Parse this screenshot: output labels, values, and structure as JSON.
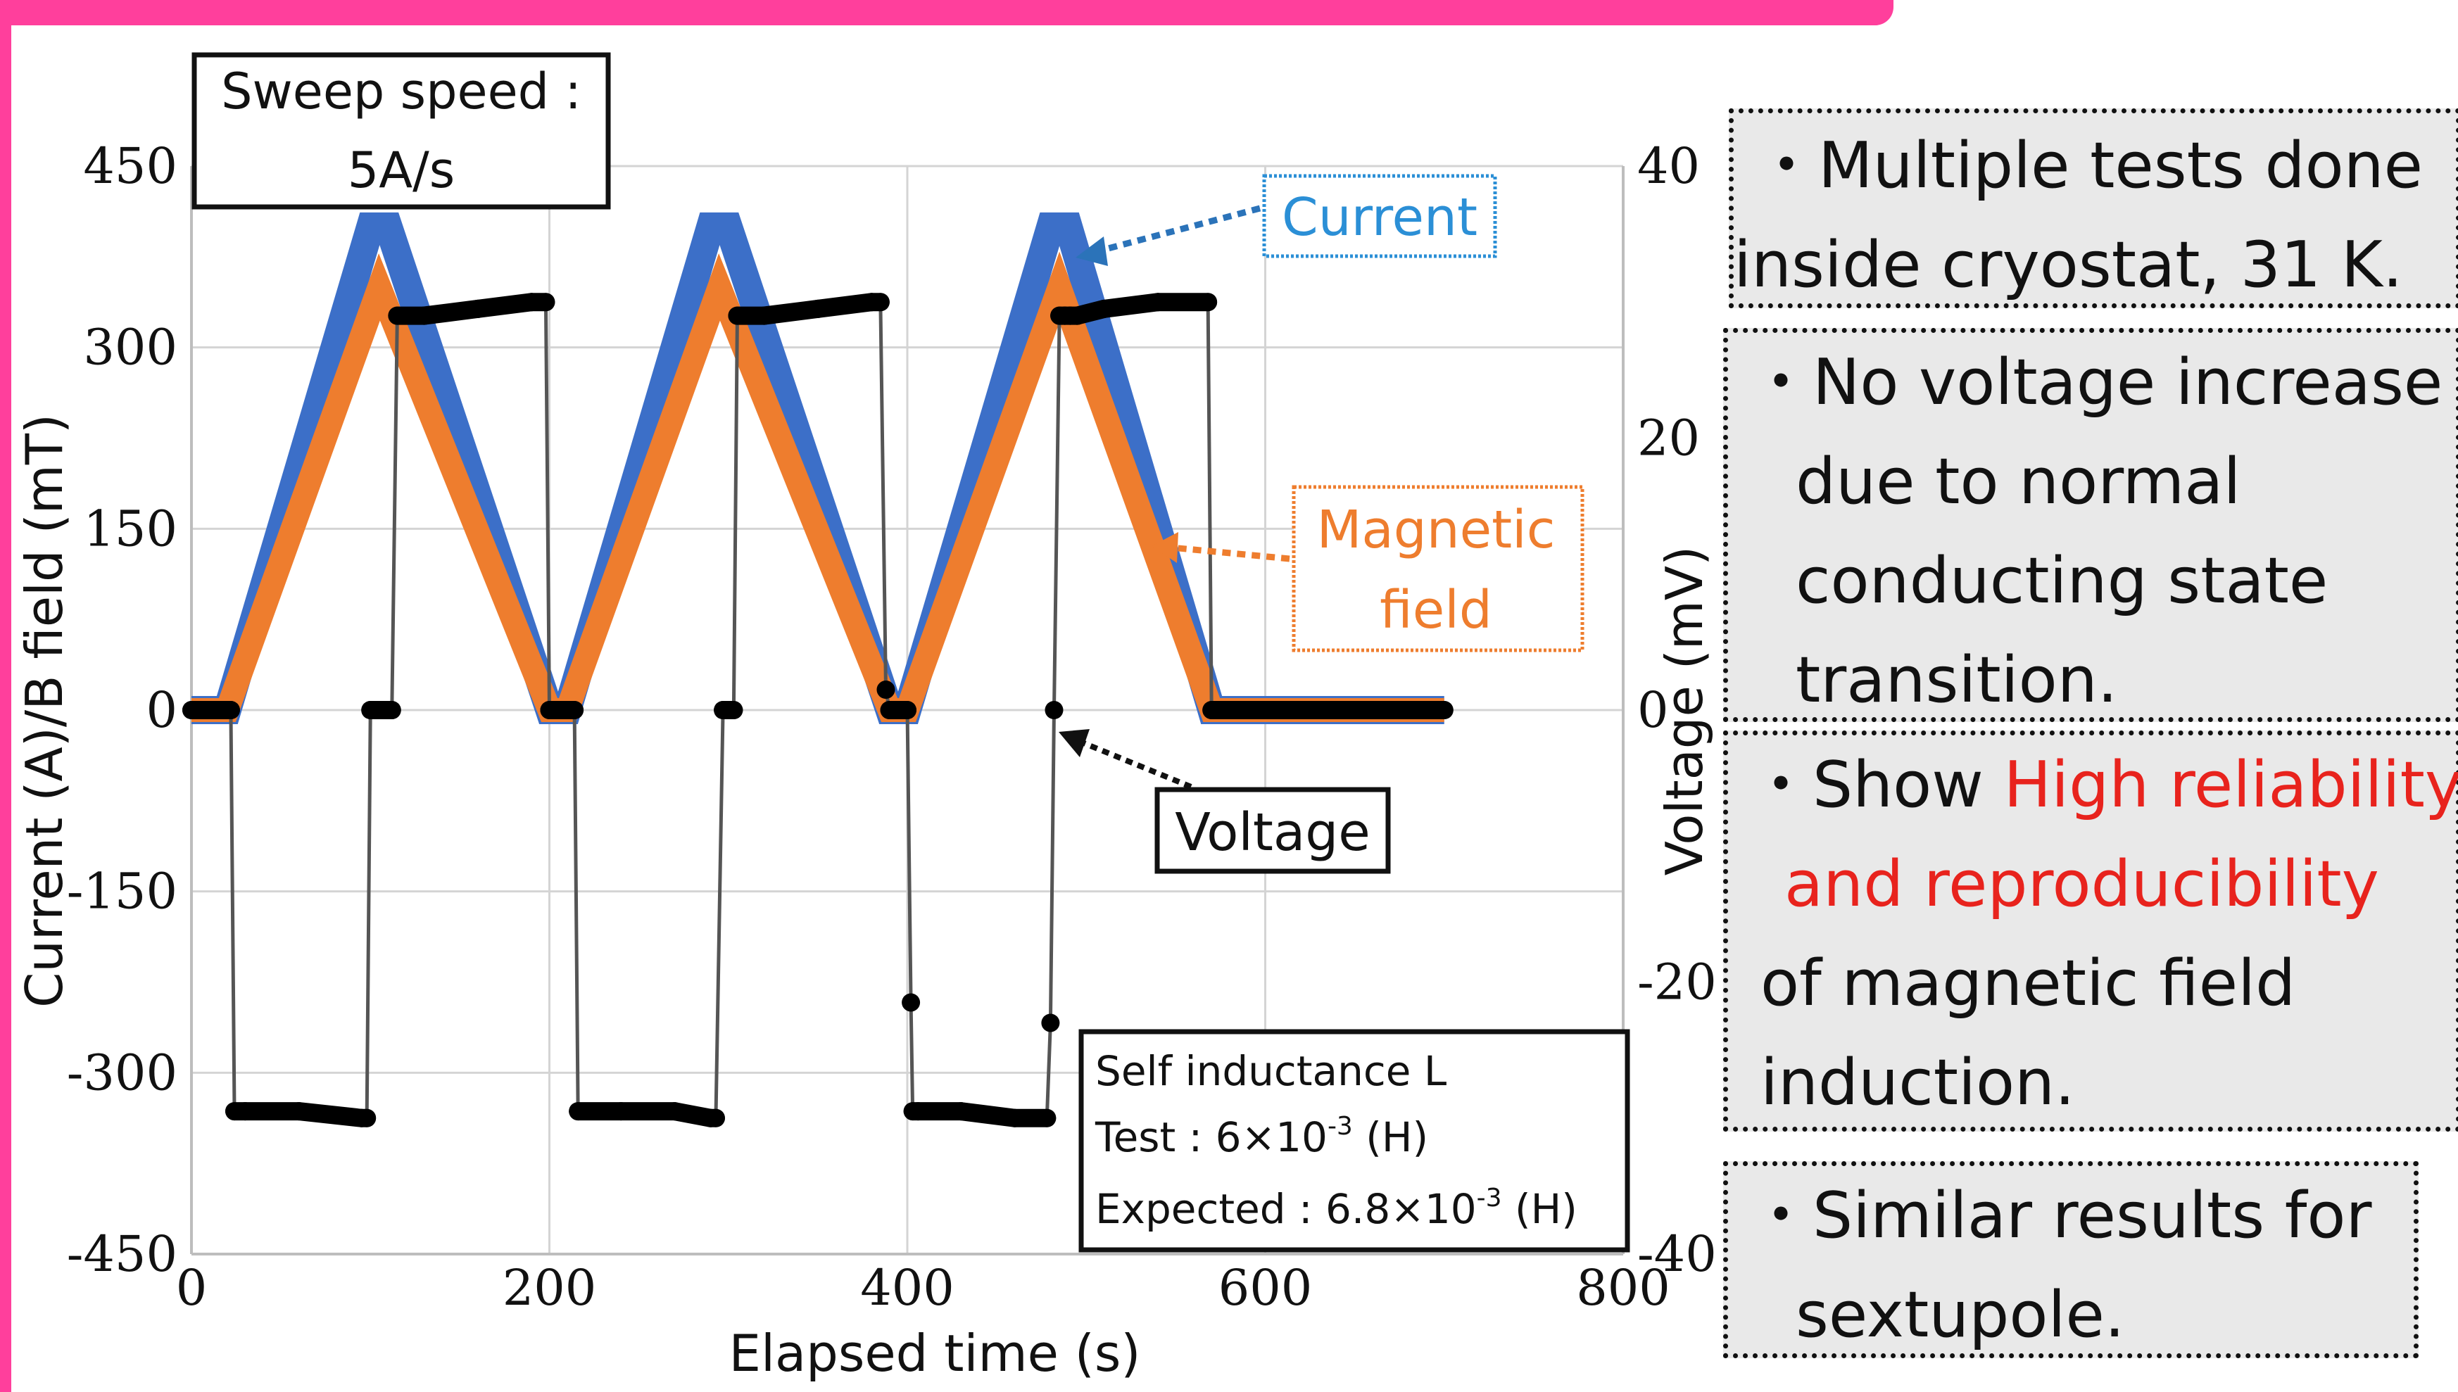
{
  "chart_data": {
    "type": "line",
    "xlabel": "Elapsed time (s)",
    "ylabel_left": "Current (A)/B field (mT)",
    "ylabel_right": "Voltage (mV)",
    "xlim": [
      0,
      800
    ],
    "ylim_left": [
      -450,
      450
    ],
    "ylim_right": [
      -40,
      40
    ],
    "x_ticks": [
      "0",
      "200",
      "400",
      "600",
      "800"
    ],
    "y_left_ticks": [
      "450",
      "300",
      "150",
      "0",
      "-150",
      "-300",
      "-450"
    ],
    "y_right_ticks": [
      "40",
      "20",
      "0",
      "-20",
      "-40"
    ],
    "grid": true,
    "series": [
      {
        "name": "Current",
        "axis": "left",
        "color": "#3c6fc8",
        "x": [
          0,
          20,
          100,
          110,
          200,
          210,
          290,
          300,
          390,
          400,
          480,
          490,
          570,
          700
        ],
        "y": [
          0,
          0,
          400,
          400,
          0,
          0,
          400,
          400,
          0,
          0,
          400,
          400,
          0,
          0
        ]
      },
      {
        "name": "Magnetic field",
        "axis": "left",
        "color": "#ee7d2e",
        "x": [
          0,
          20,
          105,
          200,
          210,
          295,
          390,
          400,
          485,
          570,
          700
        ],
        "y": [
          0,
          0,
          350,
          0,
          0,
          350,
          0,
          0,
          350,
          0,
          0
        ]
      },
      {
        "name": "Voltage",
        "axis": "right",
        "color": "#000000",
        "x": [
          0,
          22,
          24,
          30,
          60,
          95,
          98,
          100,
          106,
          112,
          115,
          130,
          160,
          190,
          198,
          200,
          210,
          214,
          216,
          240,
          270,
          290,
          293,
          297,
          303,
          305,
          320,
          350,
          380,
          385,
          388,
          390,
          396,
          400,
          402,
          403,
          406,
          430,
          460,
          478,
          480,
          482,
          485,
          488,
          491,
          495,
          510,
          540,
          568,
          570,
          575,
          620,
          700
        ],
        "y": [
          0,
          0,
          -29.5,
          -29.5,
          -29.5,
          -30,
          -30,
          0,
          0,
          0,
          29,
          29,
          29.5,
          30,
          30,
          0,
          0,
          0,
          -29.5,
          -29.5,
          -29.5,
          -30,
          -30,
          0,
          0,
          29,
          29,
          29.5,
          30,
          30,
          1.5,
          0,
          0,
          0,
          -21.5,
          -29.5,
          -29.5,
          -29.5,
          -30,
          -30,
          -23,
          0,
          29,
          29,
          29,
          29,
          29.5,
          30,
          30,
          0,
          0,
          0,
          0
        ]
      }
    ],
    "legend_callouts": [
      "Current",
      "Magnetic field",
      "Voltage"
    ],
    "annotations": [
      {
        "lines": [
          "Sweep speed :",
          "5A/s"
        ]
      },
      {
        "lines": [
          "Self inductance L",
          "Test : 6×10",
          "-3",
          " (H)",
          "Expected : 6.8×10",
          "-3",
          " (H)"
        ]
      }
    ]
  },
  "notes": {
    "n1": [
      "・Multiple tests done",
      "inside cryostat, 31 K."
    ],
    "n2": [
      "・No voltage increase",
      "due to normal",
      "conducting state",
      "transition."
    ],
    "n3": [
      "・Show ",
      "High reliability",
      "and reproducibility",
      "of magnetic field",
      "induction."
    ],
    "n4": [
      "・Similar results for",
      "sextupole."
    ]
  },
  "colors": {
    "banner": "#ff3f9c",
    "current": "#3c6fc8",
    "field": "#ee7d2e",
    "voltage": "#000000",
    "highlight": "#e8231d",
    "note_bg": "#e9e9e9"
  }
}
